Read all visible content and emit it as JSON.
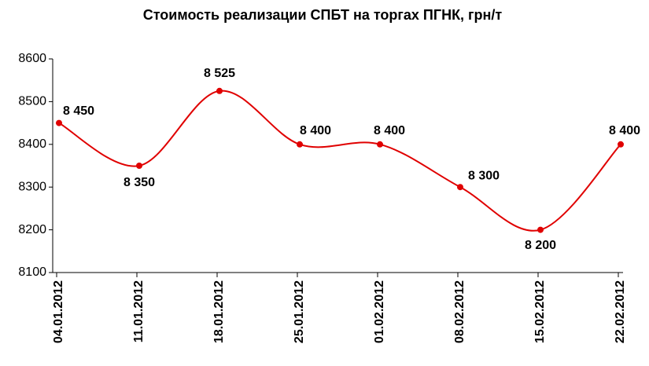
{
  "chart_data": {
    "type": "line",
    "title": "Стоимость реализации СПБТ на торгах ПГНК, грн/т",
    "categories": [
      "04.01.2012",
      "11.01.2012",
      "18.01.2012",
      "25.01.2012",
      "01.02.2012",
      "08.02.2012",
      "15.02.2012",
      "22.02.2012"
    ],
    "series": [
      {
        "color": "#e00000",
        "values": [
          8450,
          8350,
          8525,
          8400,
          8400,
          8300,
          8200,
          8400
        ],
        "value_labels": [
          "8 450",
          "8 350",
          "8 525",
          "8 400",
          "8 400",
          "8 300",
          "8 200",
          "8 400"
        ]
      }
    ],
    "ylim": [
      8100,
      8600
    ],
    "yticks": [
      8100,
      8200,
      8300,
      8400,
      8500,
      8600
    ],
    "grid": false,
    "smooth": true
  }
}
